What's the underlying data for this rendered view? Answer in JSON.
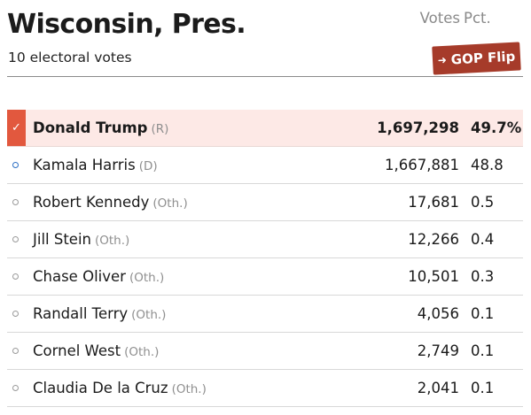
{
  "header": {
    "title": "Wisconsin, Pres.",
    "subtitle": "10 electoral votes",
    "flip_badge": "GOP Flip",
    "flip_badge_color": "#a63b2a"
  },
  "table": {
    "columns": {
      "votes": "Votes",
      "pct": "Pct."
    },
    "rows": [
      {
        "name": "Donald Trump",
        "party": "(R)",
        "votes": "1,697,298",
        "pct": "49.7%",
        "winner": true
      },
      {
        "name": "Kamala Harris",
        "party": "(D)",
        "votes": "1,667,881",
        "pct": "48.8"
      },
      {
        "name": "Robert Kennedy",
        "party": "(Oth.)",
        "votes": "17,681",
        "pct": "0.5"
      },
      {
        "name": "Jill Stein",
        "party": "(Oth.)",
        "votes": "12,266",
        "pct": "0.4"
      },
      {
        "name": "Chase Oliver",
        "party": "(Oth.)",
        "votes": "10,501",
        "pct": "0.3"
      },
      {
        "name": "Randall Terry",
        "party": "(Oth.)",
        "votes": "4,056",
        "pct": "0.1"
      },
      {
        "name": "Cornel West",
        "party": "(Oth.)",
        "votes": "2,749",
        "pct": "0.1"
      },
      {
        "name": "Claudia De la Cruz",
        "party": "(Oth.)",
        "votes": "2,041",
        "pct": "0.1"
      }
    ]
  },
  "colors": {
    "winner_check": "#e2583e",
    "winner_row": "#fde9e6",
    "dem_dot": "#2d6fc4",
    "other_dot": "#9a9a9a"
  },
  "icons": {
    "winner": "checkmark-icon",
    "flip": "arrow-right-icon",
    "candidate": "circle-bullet-icon"
  }
}
